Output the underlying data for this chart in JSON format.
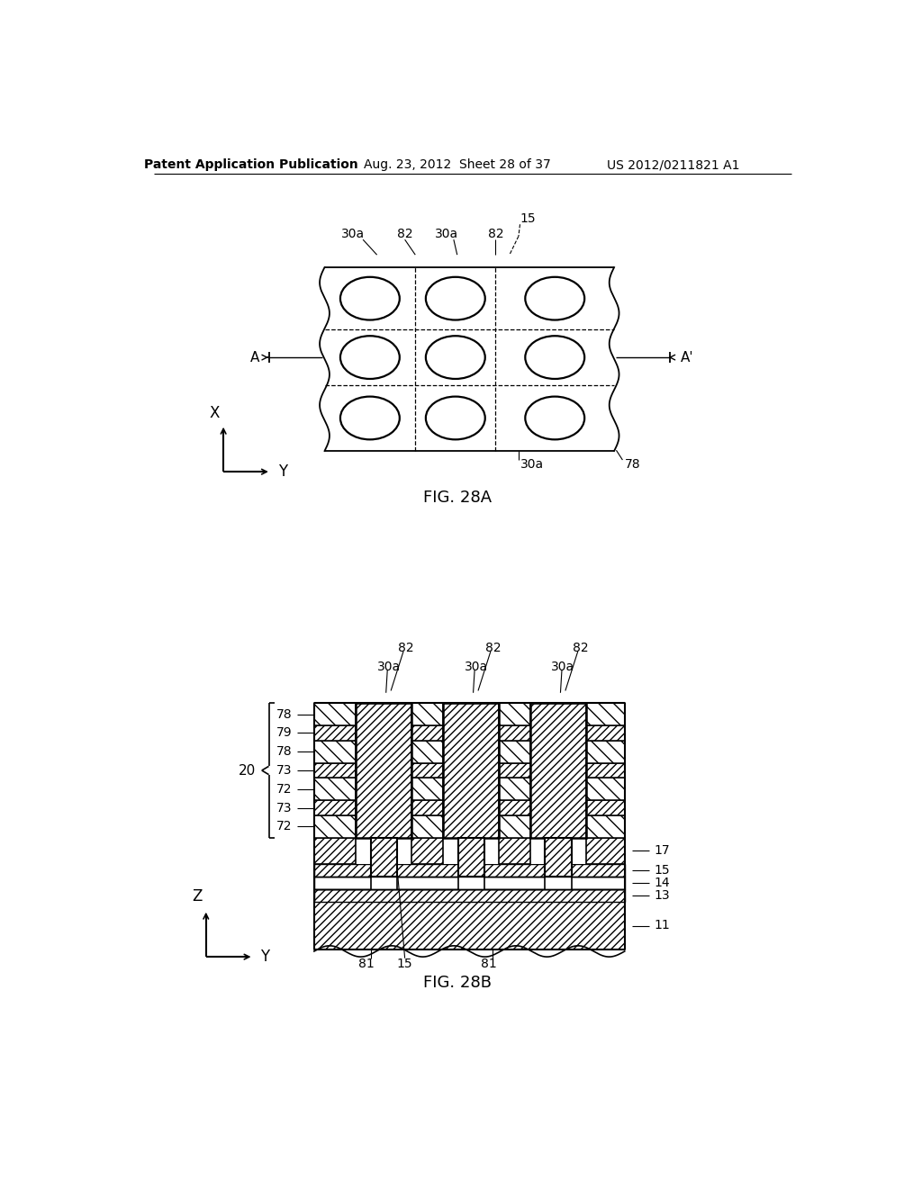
{
  "bg_color": "#ffffff",
  "header_text": "Patent Application Publication",
  "header_date": "Aug. 23, 2012  Sheet 28 of 37",
  "header_patent": "US 2012/0211821 A1",
  "fig28a_caption": "FIG. 28A",
  "fig28b_caption": "FIG. 28B"
}
